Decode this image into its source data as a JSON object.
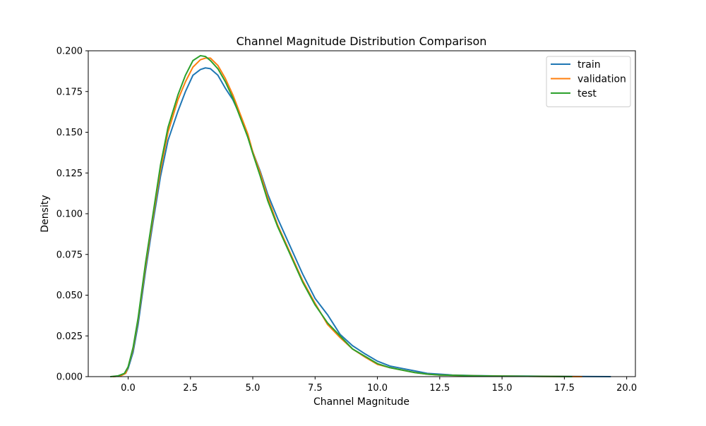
{
  "chart_data": {
    "type": "line",
    "title": "Channel Magnitude Distribution Comparison",
    "xlabel": "Channel Magnitude",
    "ylabel": "Density",
    "xlim": [
      -1.6,
      20.35
    ],
    "ylim": [
      0,
      0.2
    ],
    "xticks": [
      0.0,
      2.5,
      5.0,
      7.5,
      10.0,
      12.5,
      15.0,
      17.5,
      20.0
    ],
    "xtick_labels": [
      "0.0",
      "2.5",
      "5.0",
      "7.5",
      "10.0",
      "12.5",
      "15.0",
      "17.5",
      "20.0"
    ],
    "yticks": [
      0.0,
      0.025,
      0.05,
      0.075,
      0.1,
      0.125,
      0.15,
      0.175,
      0.2
    ],
    "ytick_labels": [
      "0.000",
      "0.025",
      "0.050",
      "0.075",
      "0.100",
      "0.125",
      "0.150",
      "0.175",
      "0.200"
    ],
    "grid": false,
    "legend_position": "top-right",
    "series": [
      {
        "name": "train",
        "color": "#1f77b4",
        "points": [
          [
            -0.6,
            0.0
          ],
          [
            -0.3,
            0.0005
          ],
          [
            -0.1,
            0.002
          ],
          [
            0.0,
            0.005
          ],
          [
            0.2,
            0.015
          ],
          [
            0.4,
            0.032
          ],
          [
            0.7,
            0.065
          ],
          [
            1.0,
            0.095
          ],
          [
            1.3,
            0.123
          ],
          [
            1.6,
            0.145
          ],
          [
            2.0,
            0.163
          ],
          [
            2.3,
            0.175
          ],
          [
            2.6,
            0.185
          ],
          [
            2.9,
            0.1885
          ],
          [
            3.1,
            0.1895
          ],
          [
            3.3,
            0.189
          ],
          [
            3.6,
            0.185
          ],
          [
            3.9,
            0.177
          ],
          [
            4.2,
            0.17
          ],
          [
            4.5,
            0.16
          ],
          [
            4.8,
            0.147
          ],
          [
            5.0,
            0.138
          ],
          [
            5.3,
            0.126
          ],
          [
            5.6,
            0.112
          ],
          [
            6.0,
            0.097
          ],
          [
            6.5,
            0.08
          ],
          [
            7.0,
            0.063
          ],
          [
            7.5,
            0.048
          ],
          [
            8.0,
            0.038
          ],
          [
            8.5,
            0.026
          ],
          [
            9.0,
            0.019
          ],
          [
            9.5,
            0.014
          ],
          [
            10.0,
            0.0095
          ],
          [
            10.5,
            0.0065
          ],
          [
            11.0,
            0.005
          ],
          [
            11.5,
            0.0035
          ],
          [
            12.0,
            0.002
          ],
          [
            12.5,
            0.0015
          ],
          [
            13.0,
            0.001
          ],
          [
            14.0,
            0.0006
          ],
          [
            15.0,
            0.0004
          ],
          [
            16.0,
            0.0003
          ],
          [
            17.0,
            0.0002
          ],
          [
            18.0,
            0.0001
          ],
          [
            19.35,
            0.0
          ]
        ]
      },
      {
        "name": "validation",
        "color": "#ff7f0e",
        "points": [
          [
            -0.6,
            0.0
          ],
          [
            -0.3,
            0.0005
          ],
          [
            -0.1,
            0.002
          ],
          [
            0.0,
            0.006
          ],
          [
            0.2,
            0.017
          ],
          [
            0.4,
            0.035
          ],
          [
            0.7,
            0.068
          ],
          [
            1.0,
            0.098
          ],
          [
            1.3,
            0.127
          ],
          [
            1.6,
            0.15
          ],
          [
            2.0,
            0.17
          ],
          [
            2.3,
            0.181
          ],
          [
            2.6,
            0.19
          ],
          [
            2.9,
            0.1945
          ],
          [
            3.1,
            0.1955
          ],
          [
            3.3,
            0.1955
          ],
          [
            3.6,
            0.191
          ],
          [
            3.9,
            0.183
          ],
          [
            4.2,
            0.173
          ],
          [
            4.5,
            0.161
          ],
          [
            4.8,
            0.149
          ],
          [
            5.0,
            0.138
          ],
          [
            5.3,
            0.125
          ],
          [
            5.6,
            0.11
          ],
          [
            6.0,
            0.093
          ],
          [
            6.5,
            0.076
          ],
          [
            7.0,
            0.059
          ],
          [
            7.5,
            0.045
          ],
          [
            8.0,
            0.032
          ],
          [
            8.5,
            0.024
          ],
          [
            9.0,
            0.017
          ],
          [
            9.5,
            0.012
          ],
          [
            10.0,
            0.0075
          ],
          [
            10.5,
            0.0055
          ],
          [
            11.0,
            0.004
          ],
          [
            11.5,
            0.0025
          ],
          [
            12.0,
            0.0015
          ],
          [
            12.5,
            0.001
          ],
          [
            13.0,
            0.0008
          ],
          [
            14.0,
            0.0005
          ],
          [
            15.0,
            0.0003
          ],
          [
            16.0,
            0.0002
          ],
          [
            17.0,
            0.0001
          ],
          [
            18.2,
            0.0
          ]
        ]
      },
      {
        "name": "test",
        "color": "#2ca02c",
        "points": [
          [
            -0.7,
            0.0
          ],
          [
            -0.4,
            0.0005
          ],
          [
            -0.15,
            0.002
          ],
          [
            0.0,
            0.006
          ],
          [
            0.2,
            0.018
          ],
          [
            0.4,
            0.036
          ],
          [
            0.7,
            0.07
          ],
          [
            1.0,
            0.1
          ],
          [
            1.3,
            0.13
          ],
          [
            1.6,
            0.153
          ],
          [
            2.0,
            0.173
          ],
          [
            2.3,
            0.185
          ],
          [
            2.6,
            0.194
          ],
          [
            2.9,
            0.197
          ],
          [
            3.1,
            0.1965
          ],
          [
            3.3,
            0.194
          ],
          [
            3.6,
            0.189
          ],
          [
            3.9,
            0.181
          ],
          [
            4.2,
            0.171
          ],
          [
            4.5,
            0.159
          ],
          [
            4.8,
            0.147
          ],
          [
            5.0,
            0.137
          ],
          [
            5.3,
            0.123
          ],
          [
            5.6,
            0.108
          ],
          [
            6.0,
            0.092
          ],
          [
            6.5,
            0.075
          ],
          [
            7.0,
            0.058
          ],
          [
            7.5,
            0.044
          ],
          [
            8.0,
            0.033
          ],
          [
            8.5,
            0.025
          ],
          [
            9.0,
            0.017
          ],
          [
            9.5,
            0.0125
          ],
          [
            10.0,
            0.008
          ],
          [
            10.5,
            0.0055
          ],
          [
            11.0,
            0.004
          ],
          [
            11.5,
            0.0025
          ],
          [
            12.0,
            0.0015
          ],
          [
            12.5,
            0.001
          ],
          [
            13.0,
            0.0008
          ],
          [
            14.0,
            0.0005
          ],
          [
            15.0,
            0.0003
          ],
          [
            16.0,
            0.0002
          ],
          [
            17.0,
            0.0001
          ],
          [
            17.8,
            0.0
          ]
        ]
      }
    ]
  }
}
